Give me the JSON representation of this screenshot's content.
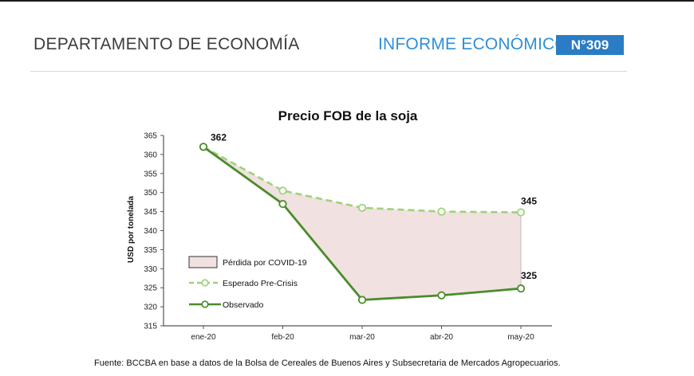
{
  "header": {
    "department": "DEPARTAMENTO DE ECONOMÍA",
    "report_label": "INFORME ECONÓMICO",
    "report_number": "N°309"
  },
  "chart_data": {
    "type": "line",
    "title": "Precio FOB de la soja",
    "ylabel": "USD por tonelada",
    "xlabel": "",
    "categories": [
      "ene-20",
      "feb-20",
      "mar-20",
      "abr-20",
      "may-20"
    ],
    "ylim": [
      315,
      365
    ],
    "yticks": [
      315,
      320,
      325,
      330,
      335,
      340,
      345,
      350,
      355,
      360,
      365
    ],
    "grid": false,
    "legend_position": "bottom-left",
    "series": [
      {
        "name": "Esperado Pre-Crisis",
        "values": [
          362,
          350.5,
          346,
          345,
          344.8
        ],
        "color": "#9ed27a",
        "style": "dashed"
      },
      {
        "name": "Observado",
        "values": [
          362,
          347,
          321.8,
          323,
          324.8
        ],
        "color": "#4a8c2a",
        "style": "solid"
      }
    ],
    "area": {
      "name": "Pérdida por COVID-19",
      "between": [
        "Esperado Pre-Crisis",
        "Observado"
      ],
      "fill": "#f1e1e1"
    },
    "annotations": [
      {
        "category": "ene-20",
        "text": "362"
      },
      {
        "category": "may-20",
        "text": "345"
      },
      {
        "category": "may-20",
        "text": "325"
      }
    ]
  },
  "footer": {
    "source": "Fuente: BCCBA en base a datos de la Bolsa de Cereales de Buenos Aires y Subsecretaria de Mercados Agropecuarios."
  }
}
